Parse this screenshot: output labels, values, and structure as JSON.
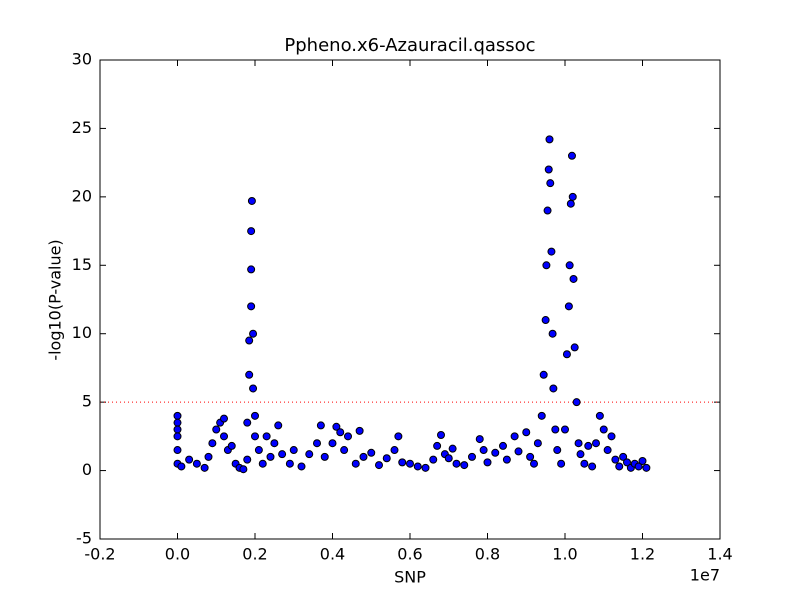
{
  "chart_data": {
    "type": "scatter",
    "title": "Ppheno.x6-Azauracil.qassoc",
    "xlabel": "SNP",
    "ylabel": "-log10(P-value)",
    "x_offset_label": "1e7",
    "xlim": [
      -0.2,
      1.4
    ],
    "ylim": [
      -5,
      30
    ],
    "xticks": [
      -0.2,
      {
        "value": 0,
        "label": "0.0"
      },
      0.2,
      0.4,
      0.6,
      0.8,
      {
        "value": 1,
        "label": "1.0"
      },
      1.2,
      1.4
    ],
    "yticks": [
      -5,
      0,
      5,
      10,
      15,
      20,
      25,
      30
    ],
    "hlines": [
      {
        "value": 5,
        "color": "#ff0000",
        "style": "dotted"
      }
    ],
    "series": [
      {
        "color": "#0000ff",
        "x": [
          0.0,
          0.0,
          0.0,
          0.0,
          0.0,
          0.0,
          0.01,
          0.03,
          0.05,
          0.07,
          0.08,
          0.09,
          0.1,
          0.11,
          0.12,
          0.12,
          0.13,
          0.14,
          0.15,
          0.16,
          0.17,
          0.18,
          0.18,
          0.185,
          0.185,
          0.19,
          0.19,
          0.19,
          0.192,
          0.195,
          0.195,
          0.2,
          0.2,
          0.21,
          0.22,
          0.23,
          0.24,
          0.25,
          0.26,
          0.27,
          0.29,
          0.3,
          0.32,
          0.34,
          0.36,
          0.37,
          0.38,
          0.4,
          0.41,
          0.42,
          0.43,
          0.44,
          0.46,
          0.47,
          0.48,
          0.5,
          0.52,
          0.54,
          0.56,
          0.57,
          0.58,
          0.6,
          0.62,
          0.64,
          0.66,
          0.67,
          0.68,
          0.69,
          0.7,
          0.71,
          0.72,
          0.74,
          0.76,
          0.78,
          0.79,
          0.8,
          0.82,
          0.84,
          0.85,
          0.87,
          0.88,
          0.9,
          0.91,
          0.92,
          0.93,
          0.94,
          0.945,
          0.95,
          0.952,
          0.955,
          0.958,
          0.96,
          0.962,
          0.965,
          0.968,
          0.97,
          0.975,
          0.98,
          0.99,
          1.0,
          1.005,
          1.01,
          1.012,
          1.015,
          1.018,
          1.02,
          1.022,
          1.025,
          1.03,
          1.035,
          1.04,
          1.05,
          1.06,
          1.07,
          1.08,
          1.09,
          1.1,
          1.11,
          1.12,
          1.13,
          1.14,
          1.15,
          1.16,
          1.17,
          1.18,
          1.19,
          1.2,
          1.21
        ],
        "values": [
          4.0,
          3.5,
          3.0,
          2.5,
          1.5,
          0.5,
          0.3,
          0.8,
          0.5,
          0.2,
          1.0,
          2.0,
          3.0,
          3.5,
          3.8,
          2.5,
          1.5,
          1.8,
          0.5,
          0.2,
          0.1,
          0.8,
          3.5,
          7,
          9.5,
          12,
          14.7,
          17.5,
          19.7,
          10,
          6,
          4,
          2.5,
          1.5,
          0.5,
          2.5,
          1,
          2.0,
          3.3,
          1.2,
          0.5,
          1.5,
          0.3,
          1.2,
          2.0,
          3.3,
          1.0,
          2.0,
          3.2,
          2.8,
          1.5,
          2.5,
          0.5,
          2.9,
          1.0,
          1.3,
          0.4,
          0.9,
          1.5,
          2.5,
          0.6,
          0.5,
          0.3,
          0.2,
          0.8,
          1.8,
          2.6,
          1.2,
          0.9,
          1.6,
          0.5,
          0.4,
          1.0,
          2.3,
          1.5,
          0.6,
          1.3,
          1.8,
          0.8,
          2.5,
          1.4,
          2.8,
          1.0,
          0.5,
          2.0,
          4.0,
          7,
          11,
          15,
          19,
          22,
          24.2,
          21,
          16,
          10,
          6,
          3,
          1.5,
          0.5,
          3,
          8.5,
          12,
          15,
          19.5,
          23.0,
          20,
          14,
          9,
          5,
          2,
          1.2,
          0.5,
          1.8,
          0.3,
          2.0,
          4.0,
          3.0,
          1.5,
          2.5,
          0.8,
          0.3,
          1.0,
          0.6,
          0.2,
          0.5,
          0.3,
          0.7,
          0.2
        ]
      }
    ]
  }
}
